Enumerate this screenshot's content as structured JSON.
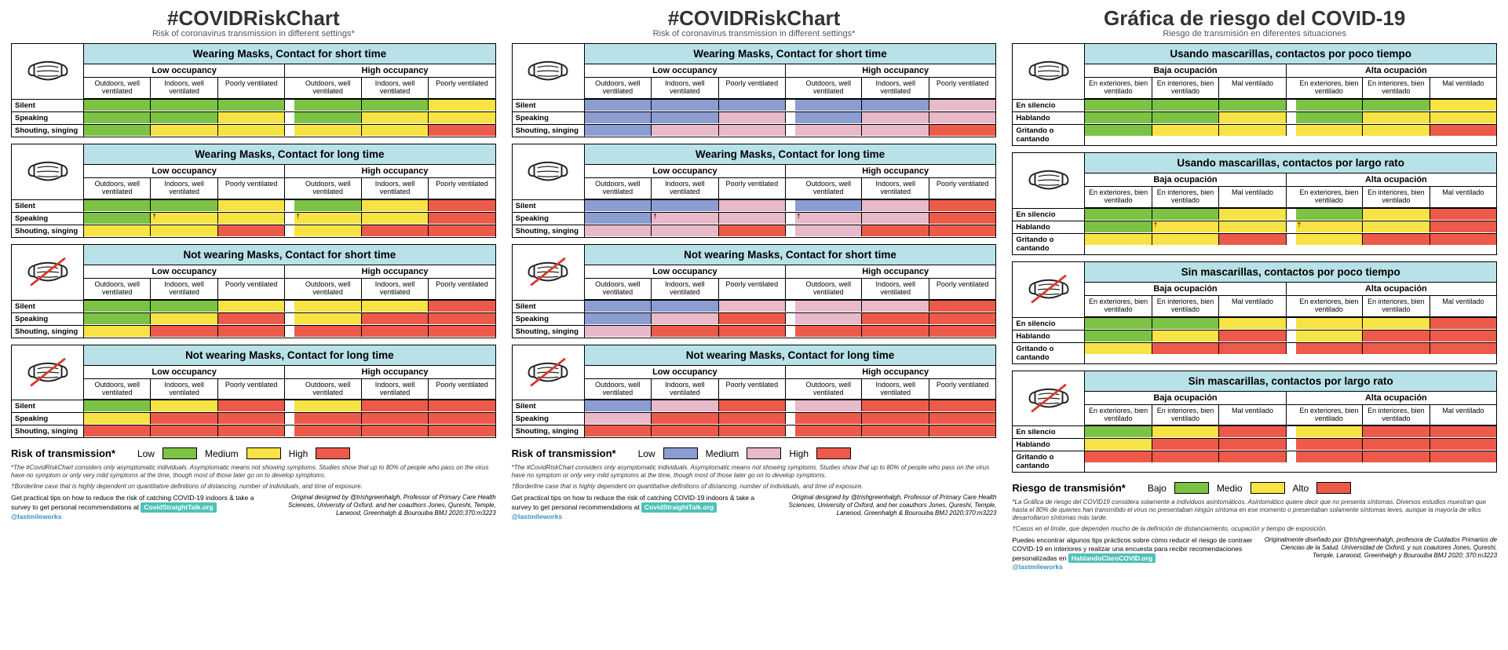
{
  "colors": {
    "header_bg": "#b8e2e8",
    "low_a": "#7cc244",
    "med_a": "#f7e344",
    "high_a": "#ed5a4a",
    "low_b": "#8b9dd1",
    "med_b": "#e8b9c9",
    "high_b": "#ed5a4a",
    "border": "#000000",
    "bg": "#ffffff",
    "badge": "#4fc1b8"
  },
  "levels": {
    "L": "low",
    "M": "med",
    "H": "high"
  },
  "blocks_schema": {
    "note": "cells is 3 rows × 6 cols (low occ 3 + high occ 3). values L/M/H map to colors per panel palette."
  },
  "blocks": [
    {
      "mask": true,
      "section_key": "mask_short",
      "cells": [
        [
          "L",
          "L",
          "L",
          "L",
          "L",
          "M"
        ],
        [
          "L",
          "L",
          "M",
          "L",
          "M",
          "M"
        ],
        [
          "L",
          "M",
          "M",
          "M",
          "M",
          "H"
        ]
      ]
    },
    {
      "mask": true,
      "section_key": "mask_long",
      "cells": [
        [
          "L",
          "L",
          "M",
          "L",
          "M",
          "H"
        ],
        [
          "L",
          "M",
          "M",
          "M",
          "M",
          "H"
        ],
        [
          "M",
          "M",
          "H",
          "M",
          "H",
          "H"
        ]
      ],
      "annot": {
        "1,1": "†",
        "1,3": "†"
      }
    },
    {
      "mask": false,
      "section_key": "nomask_short",
      "cells": [
        [
          "L",
          "L",
          "M",
          "M",
          "M",
          "H"
        ],
        [
          "L",
          "M",
          "H",
          "M",
          "H",
          "H"
        ],
        [
          "M",
          "H",
          "H",
          "H",
          "H",
          "H"
        ]
      ]
    },
    {
      "mask": false,
      "section_key": "nomask_long",
      "cells": [
        [
          "L",
          "M",
          "H",
          "M",
          "H",
          "H"
        ],
        [
          "M",
          "H",
          "H",
          "H",
          "H",
          "H"
        ],
        [
          "H",
          "H",
          "H",
          "H",
          "H",
          "H"
        ]
      ]
    }
  ],
  "panels": [
    {
      "id": "en-a",
      "palette": "a",
      "title": "#COVIDRiskChart",
      "subtitle": "Risk of coronavirus transmission in different settings*",
      "strings": {
        "mask_short": "Wearing Masks, Contact for short time",
        "mask_long": "Wearing Masks, Contact for long time",
        "nomask_short": "Not wearing Masks, Contact for short time",
        "nomask_long": "Not wearing Masks, Contact for long time",
        "low_occ": "Low occupancy",
        "high_occ": "High occupancy",
        "vent": [
          "Outdoors, well ventilated",
          "Indoors, well ventilated",
          "Poorly ventilated"
        ],
        "rows": [
          "Silent",
          "Speaking",
          "Shouting, singing"
        ],
        "legend_title": "Risk of transmission*",
        "legend_low": "Low",
        "legend_med": "Medium",
        "legend_high": "High",
        "fine1": "*The #CovidRiskChart considers only asymptomatic individuals. Asymptomatic means not showing symptoms. Studies show that up to 80% of people who pass on the virus have no symptom or only very mild symptoms at the time, though most of those later go on to develop symptoms.",
        "fine2": "†Borderline case that is highly dependent on quantitative definitions of distancing, number of individuals, and time of exposure.",
        "footer_left_1": "Get practical tips on how to reduce the risk of catching COVID-19 indoors & take a survey to get personal recommendations at",
        "footer_badge": "CovidStraightTalk.org",
        "footer_handle": "@lastmileworks",
        "footer_right": "Original designed by @trishgreenhalgh, Professor of Primary Care Health Sciences, University of Oxford, and her coauthors Jones, Qureshi, Temple, Larwood, Greenhalgh & Bourouiba  BMJ 2020;370:m3223"
      }
    },
    {
      "id": "en-b",
      "palette": "b",
      "title": "#COVIDRiskChart",
      "subtitle": "Risk of coronavirus transmission in different settings*",
      "strings": {
        "mask_short": "Wearing Masks, Contact for short time",
        "mask_long": "Wearing Masks, Contact for long time",
        "nomask_short": "Not wearing Masks, Contact for short time",
        "nomask_long": "Not wearing Masks, Contact for long time",
        "low_occ": "Low occupancy",
        "high_occ": "High occupancy",
        "vent": [
          "Outdoors, well ventilated",
          "Indoors, well ventilated",
          "Poorly ventilated"
        ],
        "rows": [
          "Silent",
          "Speaking",
          "Shouting, singing"
        ],
        "legend_title": "Risk of transmission*",
        "legend_low": "Low",
        "legend_med": "Medium",
        "legend_high": "High",
        "fine1": "*The #CovidRiskChart considers only asymptomatic individuals. Asymptomatic means not showing symptoms. Studies show that up to 80% of people who pass on the virus have no symptom or only very mild symptoms at the time, though most of those later go on to develop symptoms.",
        "fine2": "†Borderline case that is highly dependent on quantitative definitions of distancing, number of individuals, and time of exposure.",
        "footer_left_1": "Get practical tips on how to reduce the risk of catching COVID-19 indoors & take a survey to get personal recommendations at",
        "footer_badge": "CovidStraightTalk.org",
        "footer_handle": "@lastmileworks",
        "footer_right": "Original designed by @trishgreenhalgh, Professor of Primary Care Health Sciences, University of Oxford, and her coauthors Jones, Qureshi, Temple, Larwood, Greenhalgh & Bourouiba  BMJ 2020;370:m3223"
      }
    },
    {
      "id": "es",
      "palette": "a",
      "title": "Gráfica de riesgo del COVID-19",
      "subtitle": "Riesgo de transmisión en diferentes situaciones",
      "strings": {
        "mask_short": "Usando mascarillas, contactos por poco tiempo",
        "mask_long": "Usando mascarillas, contactos por largo rato",
        "nomask_short": "Sin mascarillas, contactos por poco tiempo",
        "nomask_long": "Sin mascarillas, contactos por largo rato",
        "low_occ": "Baja ocupación",
        "high_occ": "Alta ocupación",
        "vent": [
          "En exteriores, bien ventilado",
          "En interiores, bien ventilado",
          "Mal ventilado"
        ],
        "rows": [
          "En silencio",
          "Hablando",
          "Gritando o cantando"
        ],
        "legend_title": "Riesgo de transmisión*",
        "legend_low": "Bajo",
        "legend_med": "Medio",
        "legend_high": "Alto",
        "fine1": "*La Gráfica de riesgo del COVID19 considera solamente a individuos asintomáticos. Asintomático quiere decir que no presenta síntomas. Diversos estudios muestran que hasta el 80% de quienes han transmitido el virus no presentaban ningún síntoma en ese momento o presentaban solamente síntomas leves, aunque la mayoría de ellos desarrollaron síntomas más tarde.",
        "fine2": "†Casos en el límite, que dependen mucho de la definición de distanciamiento, ocupación y tiempo de exposición.",
        "footer_left_1": "Puedes encontrar algunos tips prácticos sobre cómo reducir el riesgo de contraer COVID-19 en interiores y realizar una encuesta para recibir recomendaciones personalizadas en",
        "footer_badge": "HablandoClaroCOVID.org",
        "footer_handle": "@lastmileworks",
        "footer_right": "Originalmente diseñado por @trishgreenhalgh, profesora de Cuidados Primarios de Ciencias de la Salud, Universidad de Oxford, y sus coautores Jones, Qureshi, Temple, Larwood, Greenhalgh y Bourouiba BMJ 2020; 370:m3223"
      }
    }
  ]
}
